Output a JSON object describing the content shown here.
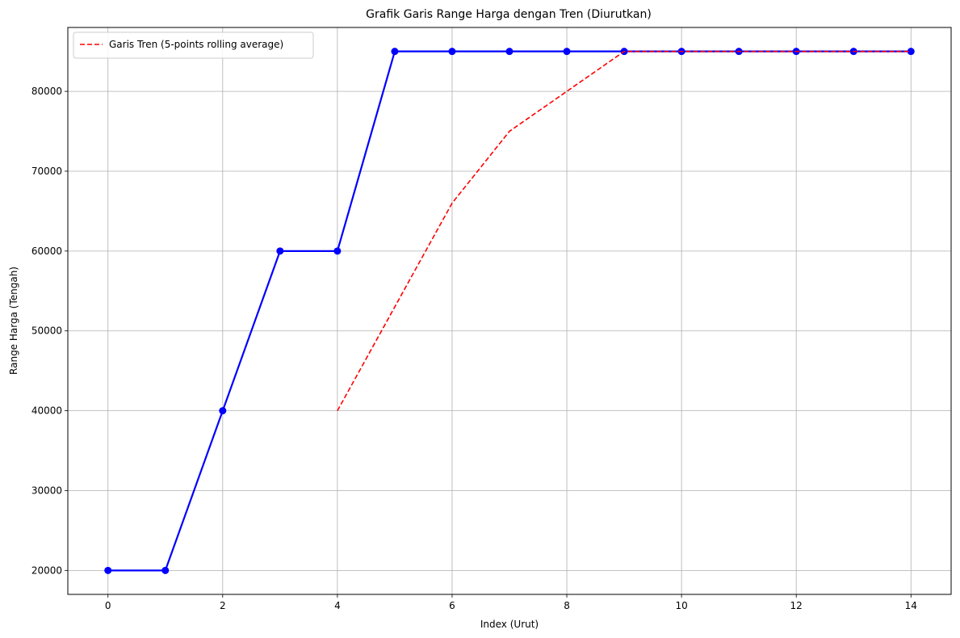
{
  "chart_data": {
    "type": "line",
    "title": "Grafik Garis Range Harga dengan Tren (Diurutkan)",
    "xlabel": "Index (Urut)",
    "ylabel": "Range Harga (Tengah)",
    "xlim": [
      -0.7,
      14.7
    ],
    "ylim": [
      17000,
      88000
    ],
    "xticks": [
      0,
      2,
      4,
      6,
      8,
      10,
      12,
      14
    ],
    "yticks": [
      20000,
      30000,
      40000,
      50000,
      60000,
      70000,
      80000
    ],
    "grid": true,
    "legend_position": "top-left",
    "series": [
      {
        "color": "#0000ff",
        "style": "solid",
        "marker": "circle",
        "x": [
          0,
          1,
          2,
          3,
          4,
          5,
          6,
          7,
          8,
          9,
          10,
          11,
          12,
          13,
          14
        ],
        "values": [
          20000,
          20000,
          40000,
          60000,
          60000,
          85000,
          85000,
          85000,
          85000,
          85000,
          85000,
          85000,
          85000,
          85000,
          85000
        ]
      },
      {
        "name": "Garis Tren (5-points rolling average)",
        "color": "#ff0000",
        "style": "dashed",
        "marker": "none",
        "x": [
          4,
          5,
          6,
          7,
          8,
          9,
          10,
          11,
          12,
          13,
          14
        ],
        "values": [
          40000,
          53000,
          66000,
          75000,
          80000,
          85000,
          85000,
          85000,
          85000,
          85000,
          85000
        ]
      }
    ]
  }
}
